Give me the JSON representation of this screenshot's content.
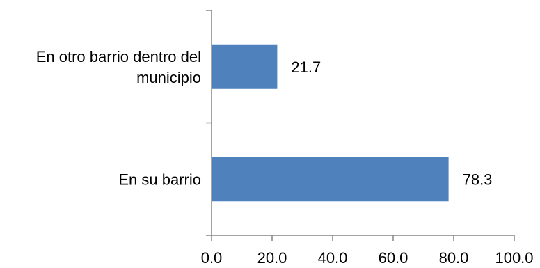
{
  "chart_data": {
    "type": "bar",
    "orientation": "horizontal",
    "categories": [
      [
        "En otro barrio dentro del",
        "municipio"
      ],
      [
        "En su barrio"
      ]
    ],
    "values": [
      21.7,
      78.3
    ],
    "value_labels": [
      "21.7",
      "78.3"
    ],
    "xlim": [
      0,
      100
    ],
    "x_ticks": [
      "0.0",
      "20.0",
      "40.0",
      "60.0",
      "80.0",
      "100.0"
    ],
    "title": "",
    "xlabel": "",
    "ylabel": "",
    "grid": false,
    "legend": "none",
    "bar_color": "#4F81BD"
  }
}
